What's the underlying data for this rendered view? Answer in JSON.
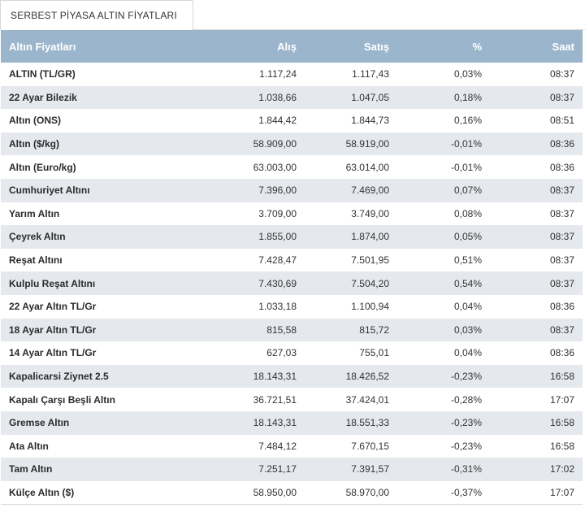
{
  "panel_title": "SERBEST PİYASA ALTIN FİYATLARI",
  "columns": [
    "Altın Fiyatları",
    "Alış",
    "Satış",
    "%",
    "Saat"
  ],
  "rows": [
    {
      "name": "ALTIN (TL/GR)",
      "buy": "1.117,24",
      "sell": "1.117,43",
      "pct": "0,03%",
      "time": "08:37"
    },
    {
      "name": "22 Ayar Bilezik",
      "buy": "1.038,66",
      "sell": "1.047,05",
      "pct": "0,18%",
      "time": "08:37"
    },
    {
      "name": "Altın (ONS)",
      "buy": "1.844,42",
      "sell": "1.844,73",
      "pct": "0,16%",
      "time": "08:51"
    },
    {
      "name": "Altın ($/kg)",
      "buy": "58.909,00",
      "sell": "58.919,00",
      "pct": "-0,01%",
      "time": "08:36"
    },
    {
      "name": "Altın (Euro/kg)",
      "buy": "63.003,00",
      "sell": "63.014,00",
      "pct": "-0,01%",
      "time": "08:36"
    },
    {
      "name": "Cumhuriyet Altını",
      "buy": "7.396,00",
      "sell": "7.469,00",
      "pct": "0,07%",
      "time": "08:37"
    },
    {
      "name": "Yarım Altın",
      "buy": "3.709,00",
      "sell": "3.749,00",
      "pct": "0,08%",
      "time": "08:37"
    },
    {
      "name": "Çeyrek Altın",
      "buy": "1.855,00",
      "sell": "1.874,00",
      "pct": "0,05%",
      "time": "08:37"
    },
    {
      "name": "Reşat Altını",
      "buy": "7.428,47",
      "sell": "7.501,95",
      "pct": "0,51%",
      "time": "08:37"
    },
    {
      "name": "Kulplu Reşat Altını",
      "buy": "7.430,69",
      "sell": "7.504,20",
      "pct": "0,54%",
      "time": "08:37"
    },
    {
      "name": "22 Ayar Altın TL/Gr",
      "buy": "1.033,18",
      "sell": "1.100,94",
      "pct": "0,04%",
      "time": "08:36"
    },
    {
      "name": "18 Ayar Altın TL/Gr",
      "buy": "815,58",
      "sell": "815,72",
      "pct": "0,03%",
      "time": "08:37"
    },
    {
      "name": "14 Ayar Altın TL/Gr",
      "buy": "627,03",
      "sell": "755,01",
      "pct": "0,04%",
      "time": "08:36"
    },
    {
      "name": "Kapalicarsi Ziynet 2.5",
      "buy": "18.143,31",
      "sell": "18.426,52",
      "pct": "-0,23%",
      "time": "16:58"
    },
    {
      "name": "Kapalı Çarşı Beşli Altın",
      "buy": "36.721,51",
      "sell": "37.424,01",
      "pct": "-0,28%",
      "time": "17:07"
    },
    {
      "name": "Gremse Altın",
      "buy": "18.143,31",
      "sell": "18.551,33",
      "pct": "-0,23%",
      "time": "16:58"
    },
    {
      "name": "Ata Altın",
      "buy": "7.484,12",
      "sell": "7.670,15",
      "pct": "-0,23%",
      "time": "16:58"
    },
    {
      "name": "Tam Altın",
      "buy": "7.251,17",
      "sell": "7.391,57",
      "pct": "-0,31%",
      "time": "17:02"
    },
    {
      "name": "Külçe Altın ($)",
      "buy": "58.950,00",
      "sell": "58.970,00",
      "pct": "-0,37%",
      "time": "17:07"
    }
  ]
}
